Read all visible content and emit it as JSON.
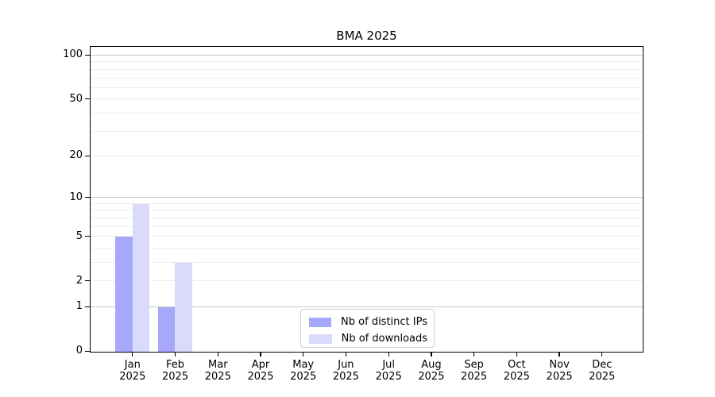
{
  "chart_data": {
    "type": "bar",
    "title": "BMA 2025",
    "categories": [
      "Jan 2025",
      "Feb 2025",
      "Mar 2025",
      "Apr 2025",
      "May 2025",
      "Jun 2025",
      "Jul 2025",
      "Aug 2025",
      "Sep 2025",
      "Oct 2025",
      "Nov 2025",
      "Dec 2025"
    ],
    "series": [
      {
        "name": "Nb of distinct IPs",
        "color": "#a8a8fa",
        "values": [
          5,
          1,
          0,
          0,
          0,
          0,
          0,
          0,
          0,
          0,
          0,
          0
        ]
      },
      {
        "name": "Nb of downloads",
        "color": "#dadafb",
        "values": [
          9,
          3,
          0,
          0,
          0,
          0,
          0,
          0,
          0,
          0,
          0,
          0
        ]
      }
    ],
    "xlabel": "",
    "ylabel": "",
    "yscale": "log1p",
    "ylim": [
      0,
      117
    ],
    "yticks": [
      0,
      1,
      2,
      5,
      10,
      20,
      50,
      100
    ],
    "minor_grid_values": [
      2,
      3,
      4,
      5,
      6,
      7,
      8,
      9,
      20,
      30,
      40,
      50,
      60,
      70,
      80,
      90
    ],
    "major_grid_values": [
      1,
      10,
      100
    ],
    "grid": true,
    "legend": {
      "location": "lower-center-inside",
      "entries": [
        "Nb of distinct IPs",
        "Nb of downloads"
      ]
    },
    "colors": {
      "background": "#ffffff",
      "axis": "#000000",
      "tick_text": "#000000",
      "major_grid": "#c9c9c9",
      "minor_grid": "#ededed",
      "legend_border": "#cccccc"
    }
  }
}
